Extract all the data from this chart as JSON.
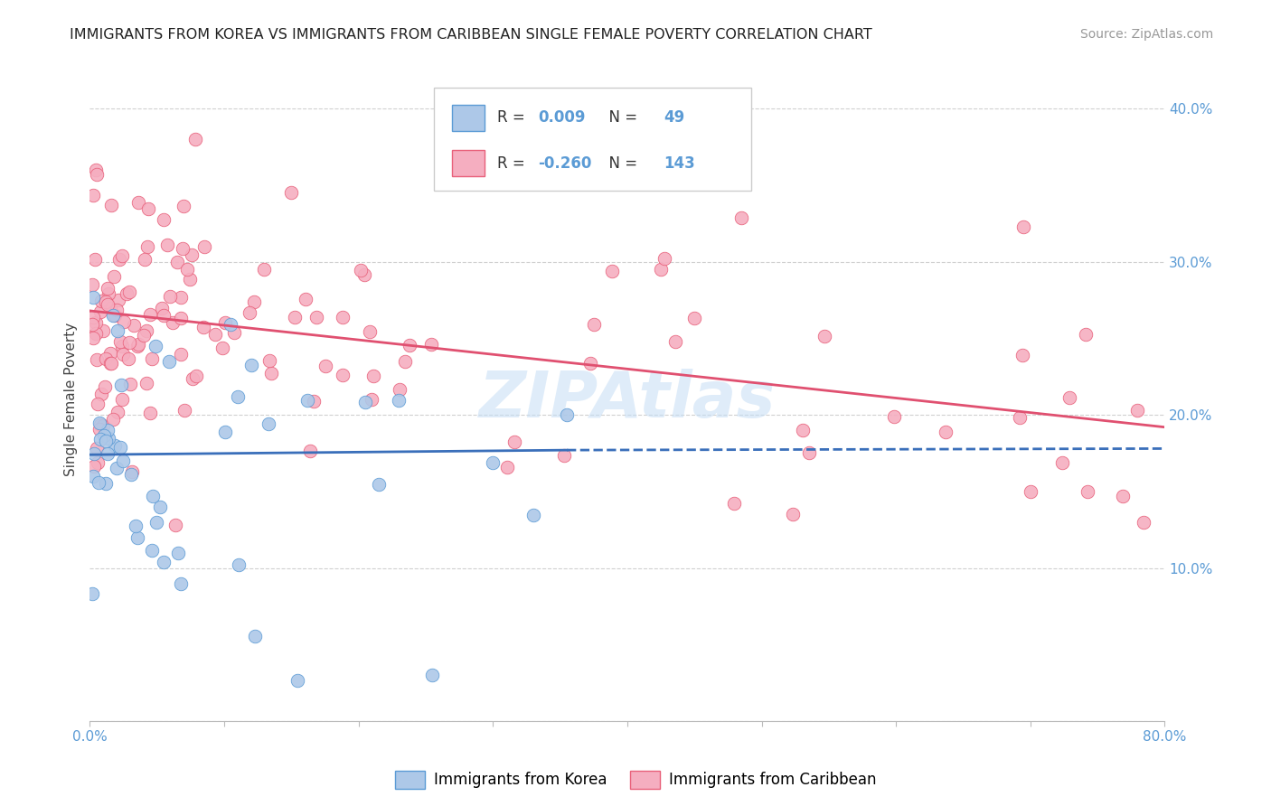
{
  "title": "IMMIGRANTS FROM KOREA VS IMMIGRANTS FROM CARIBBEAN SINGLE FEMALE POVERTY CORRELATION CHART",
  "source": "Source: ZipAtlas.com",
  "ylabel": "Single Female Poverty",
  "xlim": [
    0.0,
    0.8
  ],
  "ylim": [
    0.0,
    0.42
  ],
  "korea_R": "0.009",
  "korea_N": "49",
  "caribbean_R": "-0.260",
  "caribbean_N": "143",
  "korea_fill": "#adc8e8",
  "korea_edge": "#5b9bd5",
  "carib_fill": "#f5aec0",
  "carib_edge": "#e8607a",
  "tick_color": "#5b9bd5",
  "grid_color": "#d0d0d0",
  "watermark_color": "#c5ddf5",
  "korea_trend_color": "#3a6fba",
  "carib_trend_color": "#e05070",
  "legend_edge": "#cccccc",
  "title_color": "#222222",
  "source_color": "#999999",
  "ylabel_color": "#444444"
}
